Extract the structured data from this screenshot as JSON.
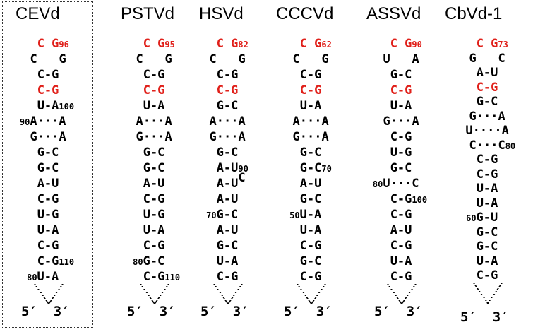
{
  "columns": [
    {
      "title": "CEVd",
      "framed": true,
      "rows": [
        {
          "text": "C G",
          "red": true,
          "num": "96",
          "numPos": "right"
        },
        {
          "text": "C   G",
          "red": false
        },
        {
          "text": "C-G",
          "red": false
        },
        {
          "text": "C-G",
          "red": true
        },
        {
          "text": "U-A",
          "red": false,
          "num": "100",
          "numPos": "right"
        },
        {
          "text": "A···A",
          "red": false,
          "num": "90",
          "numPos": "left"
        },
        {
          "text": "G···A",
          "red": false
        },
        {
          "text": "G-C",
          "red": false
        },
        {
          "text": "G-C",
          "red": false
        },
        {
          "text": "A-U",
          "red": false
        },
        {
          "text": "C-G",
          "red": false
        },
        {
          "text": "U-G",
          "red": false
        },
        {
          "text": "U-A",
          "red": false
        },
        {
          "text": "C-G",
          "red": false
        },
        {
          "text": "C-G",
          "red": false,
          "num": "110",
          "numPos": "right"
        },
        {
          "text": "U-A",
          "red": false,
          "num": "80",
          "numPos": "left"
        }
      ],
      "ends": "5′  3′"
    },
    {
      "title": "PSTVd",
      "framed": false,
      "rows": [
        {
          "text": "C G",
          "red": true,
          "num": "95",
          "numPos": "right"
        },
        {
          "text": "C   G",
          "red": false
        },
        {
          "text": "C-G",
          "red": false
        },
        {
          "text": "C-G",
          "red": true
        },
        {
          "text": "U-A",
          "red": false
        },
        {
          "text": "A···A",
          "red": false
        },
        {
          "text": "G···A",
          "red": false
        },
        {
          "text": "G-C",
          "red": false
        },
        {
          "text": "G-C",
          "red": false
        },
        {
          "text": "A-U",
          "red": false
        },
        {
          "text": "C-G",
          "red": false
        },
        {
          "text": "U-G",
          "red": false
        },
        {
          "text": "U-A",
          "red": false
        },
        {
          "text": "C-G",
          "red": false
        },
        {
          "text": "G-C",
          "red": false,
          "num": "80",
          "numPos": "left"
        },
        {
          "text": "C-G",
          "red": false,
          "num": "110",
          "numPos": "right"
        }
      ],
      "ends": "5′  3′"
    },
    {
      "title": "HSVd",
      "framed": false,
      "rows": [
        {
          "text": "C G",
          "red": true,
          "num": "82",
          "numPos": "right"
        },
        {
          "text": "C   G",
          "red": false
        },
        {
          "text": "C-G",
          "red": false
        },
        {
          "text": "C-G",
          "red": true
        },
        {
          "text": "G-C",
          "red": false
        },
        {
          "text": "A···A",
          "red": false
        },
        {
          "text": "G···A",
          "red": false
        },
        {
          "text": "G-C",
          "red": false
        },
        {
          "text": "A-U",
          "red": false,
          "num": "90",
          "numPos": "right"
        },
        {
          "text": "A-U",
          "red": false,
          "extra": "C"
        },
        {
          "text": "A-U",
          "red": false
        },
        {
          "text": "G-C",
          "red": false,
          "num": "70",
          "numPos": "left"
        },
        {
          "text": "A-U",
          "red": false
        },
        {
          "text": "G-C",
          "red": false
        },
        {
          "text": "U-A",
          "red": false
        },
        {
          "text": "C-G",
          "red": false
        }
      ],
      "ends": "5′  3′"
    },
    {
      "title": "CCCVd",
      "framed": false,
      "rows": [
        {
          "text": "C G",
          "red": true,
          "num": "62",
          "numPos": "right"
        },
        {
          "text": "C   G",
          "red": false
        },
        {
          "text": "C-G",
          "red": false
        },
        {
          "text": "C-G",
          "red": true
        },
        {
          "text": "U-A",
          "red": false
        },
        {
          "text": "A···A",
          "red": false
        },
        {
          "text": "G···A",
          "red": false
        },
        {
          "text": "G-C",
          "red": false
        },
        {
          "text": "G-C",
          "red": false,
          "num": "70",
          "numPos": "right"
        },
        {
          "text": "A-U",
          "red": false
        },
        {
          "text": "G-C",
          "red": false
        },
        {
          "text": "U-A",
          "red": false,
          "num": "50",
          "numPos": "left"
        },
        {
          "text": "U-A",
          "red": false
        },
        {
          "text": "C-G",
          "red": false
        },
        {
          "text": "G-C",
          "red": false
        },
        {
          "text": "C-G",
          "red": false
        }
      ],
      "ends": "5′  3′"
    },
    {
      "title": "ASSVd",
      "framed": false,
      "rows": [
        {
          "text": "C G",
          "red": true,
          "num": "90",
          "numPos": "right"
        },
        {
          "text": "U   A",
          "red": false
        },
        {
          "text": "G-C",
          "red": false
        },
        {
          "text": "C-G",
          "red": true
        },
        {
          "text": "U-A",
          "red": false
        },
        {
          "text": "G···A",
          "red": false
        },
        {
          "text": "C-G",
          "red": false
        },
        {
          "text": "U-G",
          "red": false
        },
        {
          "text": "G-C",
          "red": false
        },
        {
          "text": "U···C",
          "red": false,
          "num": "80",
          "numPos": "left"
        },
        {
          "text": "C-G",
          "red": false,
          "num": "100",
          "numPos": "right"
        },
        {
          "text": "C-G",
          "red": false
        },
        {
          "text": "A-U",
          "red": false
        },
        {
          "text": "C-G",
          "red": false
        },
        {
          "text": "U-A",
          "red": false
        },
        {
          "text": "C-G",
          "red": false
        }
      ],
      "ends": "5′  3′"
    },
    {
      "title": "CbVd-1",
      "framed": false,
      "rows": [
        {
          "text": "C G",
          "red": true,
          "num": "73",
          "numPos": "right"
        },
        {
          "text": "G   C",
          "red": false
        },
        {
          "text": "A-U",
          "red": false
        },
        {
          "text": "C-G",
          "red": true
        },
        {
          "text": "G-C",
          "red": false
        },
        {
          "text": "G···A",
          "red": false
        },
        {
          "text": "U····A",
          "red": false
        },
        {
          "text": "C···C",
          "red": false,
          "num": "80",
          "numPos": "right"
        },
        {
          "text": "C-G",
          "red": false
        },
        {
          "text": "C-G",
          "red": false
        },
        {
          "text": "U-A",
          "red": false
        },
        {
          "text": "U-A",
          "red": false
        },
        {
          "text": "G-U",
          "red": false,
          "num": "60",
          "numPos": "left"
        },
        {
          "text": "G-C",
          "red": false
        },
        {
          "text": "G-C",
          "red": false
        },
        {
          "text": "U-A",
          "red": false
        },
        {
          "text": "C-G",
          "red": false
        }
      ],
      "ends": "5′  3′"
    }
  ],
  "colors": {
    "loop": "#e0201a",
    "text": "#000000"
  }
}
